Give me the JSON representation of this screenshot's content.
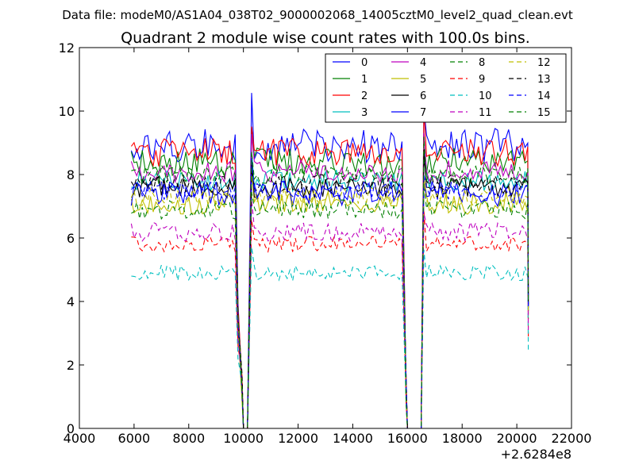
{
  "suptitle": "Data file: modeM0/AS1A04_038T02_9000002068_14005cztM0_level2_quad_clean.evt",
  "chart_data": {
    "type": "line",
    "title": "Quadrant 2 module wise count rates with 100.0s bins.",
    "xlabel": "",
    "ylabel": "",
    "xlim": [
      4000,
      22000
    ],
    "ylim": [
      0,
      12
    ],
    "x_offset_label": "+2.6284e8",
    "xticks": [
      4000,
      6000,
      8000,
      10000,
      12000,
      14000,
      16000,
      18000,
      20000,
      22000
    ],
    "xtick_labels": [
      "4000",
      "6000",
      "8000",
      "10000",
      "12000",
      "14000",
      "16000",
      "18000",
      "20000",
      "22000"
    ],
    "yticks": [
      0,
      2,
      4,
      6,
      8,
      10,
      12
    ],
    "ytick_labels": [
      "0",
      "2",
      "4",
      "6",
      "8",
      "10",
      "12"
    ],
    "grid": false,
    "legend_position": "top-right",
    "legend_columns": 4,
    "segments": [
      {
        "start": 5900,
        "end": 9700,
        "drop_to": 10000
      },
      {
        "start": 10300,
        "end": 15800,
        "drop_to": 16000
      },
      {
        "start": 16600,
        "end": 20400
      }
    ],
    "gap_bottoms": [
      [
        9900,
        10150
      ],
      [
        16000,
        16500
      ]
    ],
    "bin_width": 100,
    "series": [
      {
        "name": "0",
        "level": 8.9,
        "noise": 0.55,
        "color": "#0000ff",
        "dashed": false,
        "seed": 11
      },
      {
        "name": "1",
        "level": 8.4,
        "noise": 0.45,
        "color": "#008000",
        "dashed": false,
        "seed": 12
      },
      {
        "name": "2",
        "level": 8.7,
        "noise": 0.45,
        "color": "#ff0000",
        "dashed": false,
        "seed": 13
      },
      {
        "name": "3",
        "level": 7.8,
        "noise": 0.35,
        "color": "#00bfbf",
        "dashed": false,
        "seed": 14
      },
      {
        "name": "4",
        "level": 8.1,
        "noise": 0.35,
        "color": "#bf00bf",
        "dashed": false,
        "seed": 15
      },
      {
        "name": "5",
        "level": 7.1,
        "noise": 0.35,
        "color": "#bfbf00",
        "dashed": false,
        "seed": 16
      },
      {
        "name": "6",
        "level": 7.6,
        "noise": 0.35,
        "color": "#000000",
        "dashed": false,
        "seed": 17
      },
      {
        "name": "7",
        "level": 7.4,
        "noise": 0.4,
        "color": "#0000ff",
        "dashed": false,
        "seed": 18
      },
      {
        "name": "8",
        "level": 6.9,
        "noise": 0.3,
        "color": "#008000",
        "dashed": true,
        "seed": 19
      },
      {
        "name": "9",
        "level": 5.8,
        "noise": 0.25,
        "color": "#ff0000",
        "dashed": true,
        "seed": 20
      },
      {
        "name": "10",
        "level": 4.9,
        "noise": 0.25,
        "color": "#00bfbf",
        "dashed": true,
        "seed": 21
      },
      {
        "name": "11",
        "level": 6.2,
        "noise": 0.3,
        "color": "#bf00bf",
        "dashed": true,
        "seed": 22
      },
      {
        "name": "12",
        "level": 7.3,
        "noise": 0.3,
        "color": "#bfbf00",
        "dashed": true,
        "seed": 23
      },
      {
        "name": "13",
        "level": 7.7,
        "noise": 0.3,
        "color": "#000000",
        "dashed": true,
        "seed": 24
      },
      {
        "name": "14",
        "level": 7.5,
        "noise": 0.3,
        "color": "#0000ff",
        "dashed": true,
        "seed": 25
      },
      {
        "name": "15",
        "level": 8.0,
        "noise": 0.3,
        "color": "#008000",
        "dashed": true,
        "seed": 26
      }
    ]
  }
}
